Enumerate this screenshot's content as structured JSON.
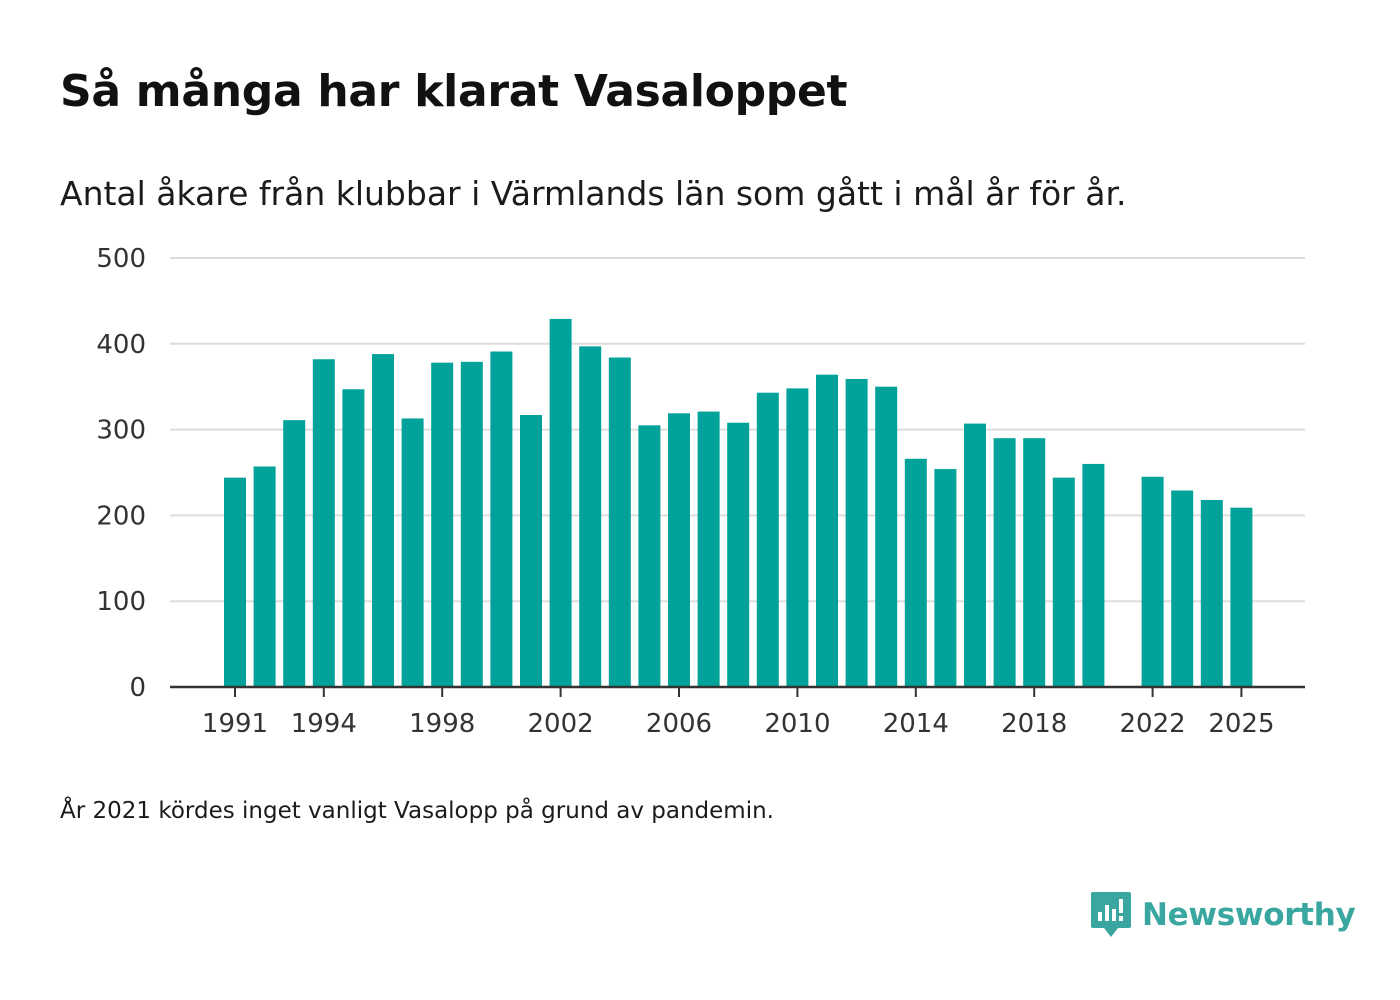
{
  "title": "Så många har klarat Vasaloppet",
  "subtitle": "Antal åkare från klubbar i Värmlands län som gått i mål år för år.",
  "note": "År 2021 kördes inget vanligt Vasalopp på grund av pandemin.",
  "logo": {
    "text": "Newsworthy",
    "icon": "newsworthy-logo-icon",
    "color": "#3aa6a0"
  },
  "colors": {
    "bar": "#00a29a",
    "grid": "#dddddd",
    "axis": "#333333"
  },
  "chart_data": {
    "type": "bar",
    "title": "Så många har klarat Vasaloppet",
    "xlabel": "",
    "ylabel": "",
    "ylim": [
      0,
      500
    ],
    "grid": true,
    "yticks": [
      0,
      100,
      200,
      300,
      400,
      500
    ],
    "xtick_labels": [
      "1991",
      "1994",
      "1998",
      "2002",
      "2006",
      "2010",
      "2014",
      "2018",
      "2022",
      "2025"
    ],
    "categories": [
      "1991",
      "1992",
      "1993",
      "1994",
      "1995",
      "1996",
      "1997",
      "1998",
      "1999",
      "2000",
      "2001",
      "2002",
      "2003",
      "2004",
      "2005",
      "2006",
      "2007",
      "2008",
      "2009",
      "2010",
      "2011",
      "2012",
      "2013",
      "2014",
      "2015",
      "2016",
      "2017",
      "2018",
      "2019",
      "2020",
      "2021",
      "2022",
      "2023",
      "2024",
      "2025"
    ],
    "values": [
      244,
      257,
      311,
      382,
      347,
      388,
      313,
      378,
      379,
      391,
      317,
      429,
      397,
      384,
      305,
      319,
      321,
      308,
      343,
      348,
      364,
      359,
      350,
      266,
      254,
      307,
      290,
      290,
      244,
      260,
      null,
      245,
      229,
      218,
      209
    ]
  }
}
